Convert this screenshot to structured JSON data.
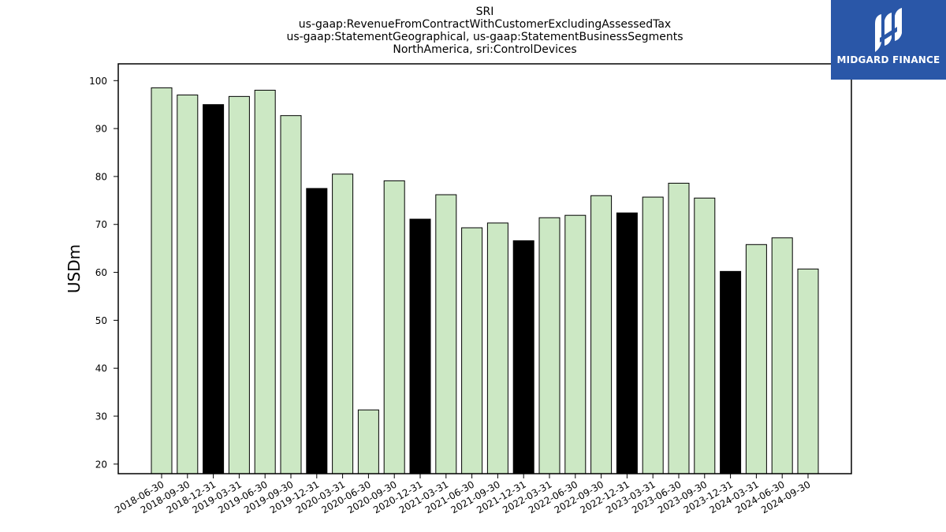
{
  "title_lines": [
    "SRI",
    "us-gaap:RevenueFromContractWithCustomerExcludingAssessedTax",
    "us-gaap:StatementGeographical, us-gaap:StatementBusinessSegments",
    "NorthAmerica, sri:ControlDevices"
  ],
  "logo": {
    "text": "MIDGARD FINANCE",
    "icon": "midgard-logo-icon",
    "background": "#2a57a8"
  },
  "colors": {
    "quarter_bar": "#cce8c4",
    "year_end_bar": "#000000",
    "bar_edge": "#000000"
  },
  "chart_data": {
    "type": "bar",
    "ylabel": "USDm",
    "xlabel": "",
    "ylim": [
      18,
      103.5
    ],
    "yticks": [
      20,
      30,
      40,
      50,
      60,
      70,
      80,
      90,
      100
    ],
    "grid": false,
    "categories": [
      "2018-06-30",
      "2018-09-30",
      "2018-12-31",
      "2019-03-31",
      "2019-06-30",
      "2019-09-30",
      "2019-12-31",
      "2020-03-31",
      "2020-06-30",
      "2020-09-30",
      "2020-12-31",
      "2021-03-31",
      "2021-06-30",
      "2021-09-30",
      "2021-12-31",
      "2022-03-31",
      "2022-06-30",
      "2022-09-30",
      "2022-12-31",
      "2023-03-31",
      "2023-06-30",
      "2023-09-30",
      "2023-12-31",
      "2024-03-31",
      "2024-06-30",
      "2024-09-30"
    ],
    "values": [
      98.5,
      97.0,
      95.0,
      96.7,
      98.0,
      92.7,
      77.5,
      80.5,
      31.3,
      79.1,
      71.1,
      76.2,
      69.3,
      70.3,
      66.6,
      71.4,
      71.9,
      76.0,
      72.4,
      75.7,
      78.6,
      75.5,
      60.2,
      65.8,
      67.2,
      60.7
    ],
    "highlight": [
      false,
      false,
      true,
      false,
      false,
      false,
      true,
      false,
      false,
      false,
      true,
      false,
      false,
      false,
      true,
      false,
      false,
      false,
      true,
      false,
      false,
      false,
      true,
      false,
      false,
      false
    ]
  }
}
